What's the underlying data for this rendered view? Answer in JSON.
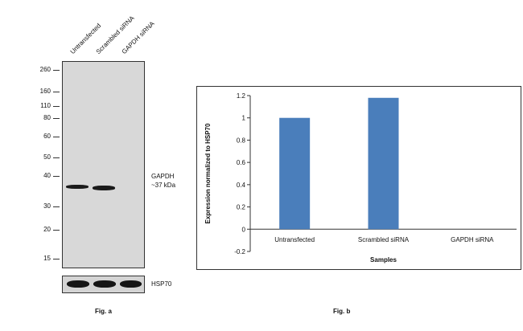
{
  "fig_a": {
    "lanes": [
      "Untransfected",
      "Scrambled siRNA",
      "GAPDH siRNA"
    ],
    "markers": [
      "260",
      "160",
      "110",
      "80",
      "60",
      "50",
      "40",
      "30",
      "20",
      "15"
    ],
    "target_label_line1": "GAPDH",
    "target_label_line2": "~37 kDa",
    "control_label": "HSP70",
    "caption": "Fig. a"
  },
  "fig_b": {
    "caption": "Fig. b"
  },
  "chart_data": {
    "type": "bar",
    "categories": [
      "Untransfected",
      "Scrambled siRNA",
      "GAPDH siRNA"
    ],
    "values": [
      1.0,
      1.18,
      0.0
    ],
    "xlabel": "Samples",
    "ylabel": "Expression normalized to HSP70",
    "ylim": [
      -0.2,
      1.2
    ],
    "yticks": [
      "-0.2",
      "0",
      "0.2",
      "0.4",
      "0.6",
      "0.8",
      "1",
      "1.2"
    ],
    "bar_color": "#4a7ebb",
    "grid": false,
    "legend": "none"
  }
}
